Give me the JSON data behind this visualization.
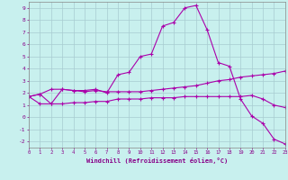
{
  "xlabel": "Windchill (Refroidissement éolien,°C)",
  "background_color": "#c8f0ee",
  "grid_color": "#a8ccd0",
  "line_color": "#aa00aa",
  "xlim": [
    0,
    23
  ],
  "ylim": [
    -2.5,
    9.5
  ],
  "xticks": [
    0,
    1,
    2,
    3,
    4,
    5,
    6,
    7,
    8,
    9,
    10,
    11,
    12,
    13,
    14,
    15,
    16,
    17,
    18,
    19,
    20,
    21,
    22,
    23
  ],
  "yticks": [
    -2,
    -1,
    0,
    1,
    2,
    3,
    4,
    5,
    6,
    7,
    8,
    9
  ],
  "line1_x": [
    0,
    1,
    2,
    3,
    4,
    5,
    6,
    7,
    8,
    9,
    10,
    11,
    12,
    13,
    14,
    15,
    16,
    17,
    18,
    19,
    20,
    21,
    22,
    23
  ],
  "line1_y": [
    1.7,
    1.9,
    1.1,
    2.3,
    2.2,
    2.2,
    2.3,
    2.0,
    3.5,
    3.7,
    5.0,
    5.2,
    7.5,
    7.8,
    9.0,
    9.2,
    7.2,
    4.5,
    4.2,
    1.5,
    0.1,
    -0.5,
    -1.8,
    -2.2
  ],
  "line2_x": [
    0,
    1,
    2,
    3,
    4,
    5,
    6,
    7,
    8,
    9,
    10,
    11,
    12,
    13,
    14,
    15,
    16,
    17,
    18,
    19,
    20,
    21,
    22,
    23
  ],
  "line2_y": [
    1.7,
    1.1,
    1.1,
    1.1,
    1.2,
    1.2,
    1.3,
    1.3,
    1.5,
    1.5,
    1.5,
    1.6,
    1.6,
    1.6,
    1.7,
    1.7,
    1.7,
    1.7,
    1.7,
    1.7,
    1.8,
    1.5,
    1.0,
    0.8
  ],
  "line3_x": [
    0,
    1,
    2,
    3,
    4,
    5,
    6,
    7,
    8,
    9,
    10,
    11,
    12,
    13,
    14,
    15,
    16,
    17,
    18,
    19,
    20,
    21,
    22,
    23
  ],
  "line3_y": [
    1.7,
    1.9,
    2.3,
    2.3,
    2.2,
    2.1,
    2.2,
    2.1,
    2.1,
    2.1,
    2.1,
    2.2,
    2.3,
    2.4,
    2.5,
    2.6,
    2.8,
    3.0,
    3.1,
    3.3,
    3.4,
    3.5,
    3.6,
    3.8
  ]
}
